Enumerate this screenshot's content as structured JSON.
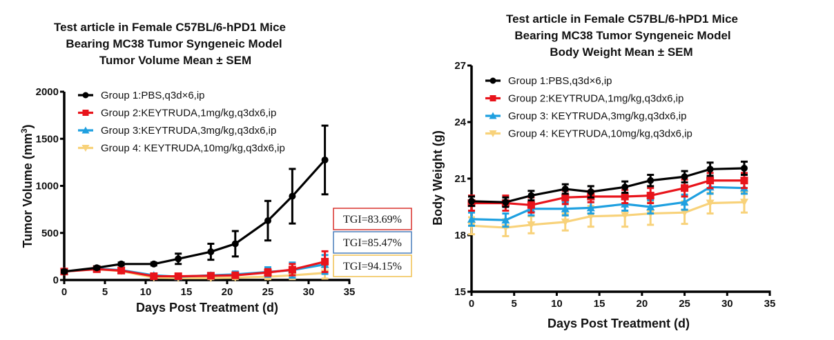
{
  "chart_data": [
    {
      "type": "line",
      "title": [
        "Test article in Female C57BL/6-hPD1 Mice",
        "Bearing MC38 Tumor Syngeneic Model",
        "Tumor Volume Mean ± SEM"
      ],
      "xlabel": "Days Post Treatment (d)",
      "ylabel": "Tumor Volume (mm",
      "ylabel_sup": "3",
      "ylabel_close": ")",
      "xlim": [
        0,
        35
      ],
      "ylim": [
        0,
        2000
      ],
      "xticks": [
        "0",
        "5",
        "10",
        "15",
        "20",
        "25",
        "30",
        "35"
      ],
      "yticks": [
        "0",
        "500",
        "1000",
        "1500",
        "2000"
      ],
      "grid": false,
      "legend_position": "top-left",
      "x": [
        0,
        4,
        7,
        11,
        14,
        18,
        21,
        25,
        28,
        32
      ],
      "series": [
        {
          "name": "Group 1:PBS,q3d×6,ip",
          "color": "#000000",
          "marker": "circle",
          "values": [
            90,
            130,
            170,
            170,
            225,
            300,
            385,
            630,
            890,
            1275
          ],
          "sem": [
            15,
            15,
            15,
            15,
            55,
            85,
            135,
            210,
            290,
            365
          ]
        },
        {
          "name": "Group 2:KEYTRUDA,1mg/kg,q3dx6,ip",
          "color": "#e8141b",
          "marker": "square",
          "values": [
            90,
            115,
            100,
            40,
            40,
            45,
            50,
            80,
            110,
            195
          ],
          "sem": [
            15,
            15,
            15,
            12,
            12,
            15,
            20,
            35,
            60,
            110
          ]
        },
        {
          "name": "Group 3:KEYTRUDA,3mg/kg,q3dx6,ip",
          "color": "#1fa0e0",
          "marker": "triangle-up",
          "values": [
            90,
            120,
            105,
            50,
            35,
            50,
            60,
            85,
            105,
            165
          ],
          "sem": [
            15,
            15,
            15,
            12,
            12,
            25,
            30,
            50,
            80,
            100
          ]
        },
        {
          "name": "Group 4: KEYTRUDA,10mg/kg,q3dx6,ip",
          "color": "#f8d27a",
          "marker": "triangle-down",
          "values": [
            90,
            115,
            95,
            25,
            20,
            20,
            25,
            35,
            50,
            75
          ],
          "sem": [
            15,
            15,
            15,
            10,
            10,
            10,
            15,
            25,
            40,
            60
          ]
        }
      ],
      "annotations": [
        {
          "text": "TGI=83.69%",
          "border_color": "#d9302c"
        },
        {
          "text": "TGI=85.47%",
          "border_color": "#4a7ebb"
        },
        {
          "text": "TGI=94.15%",
          "border_color": "#f0c050"
        }
      ]
    },
    {
      "type": "line",
      "title": [
        "Test article in Female C57BL/6-hPD1 Mice",
        "Bearing MC38 Tumor Syngeneic Model",
        "Body Weight  Mean ± SEM"
      ],
      "xlabel": "Days Post Treatment (d)",
      "ylabel": "Body Weight (g)",
      "xlim": [
        0,
        35
      ],
      "ylim": [
        15,
        27
      ],
      "xticks": [
        "0",
        "5",
        "10",
        "15",
        "20",
        "25",
        "30",
        "35"
      ],
      "yticks": [
        "15",
        "18",
        "21",
        "24",
        "27"
      ],
      "grid": false,
      "legend_position": "top-left",
      "x": [
        0,
        4,
        7,
        11,
        14,
        18,
        21,
        25,
        28,
        32
      ],
      "series": [
        {
          "name": "Group 1:PBS,q3d×6,ip",
          "color": "#000000",
          "marker": "circle",
          "values": [
            19.8,
            19.75,
            20.1,
            20.45,
            20.3,
            20.55,
            20.9,
            21.1,
            21.5,
            21.55
          ],
          "sem": [
            0.25,
            0.25,
            0.25,
            0.25,
            0.3,
            0.3,
            0.3,
            0.3,
            0.35,
            0.35
          ]
        },
        {
          "name": "Group 2:KEYTRUDA,1mg/kg,q3dx6,ip",
          "color": "#e8141b",
          "marker": "square",
          "values": [
            19.7,
            19.7,
            19.6,
            20.0,
            20.05,
            20.05,
            20.1,
            20.5,
            20.9,
            20.9
          ],
          "sem": [
            0.4,
            0.4,
            0.4,
            0.35,
            0.3,
            0.35,
            0.4,
            0.45,
            0.4,
            0.4
          ]
        },
        {
          "name": "Group 3: KEYTRUDA,3mg/kg,q3dx6,ip",
          "color": "#1fa0e0",
          "marker": "triangle-up",
          "values": [
            18.85,
            18.8,
            19.4,
            19.4,
            19.45,
            19.65,
            19.5,
            19.75,
            20.55,
            20.5
          ],
          "sem": [
            0.35,
            0.35,
            0.35,
            0.35,
            0.3,
            0.35,
            0.35,
            0.4,
            0.35,
            0.3
          ]
        },
        {
          "name": "Group 4: KEYTRUDA,10mg/kg,q3dx6,ip",
          "color": "#f8d27a",
          "marker": "triangle-down",
          "values": [
            18.5,
            18.4,
            18.55,
            18.7,
            19.0,
            19.05,
            19.15,
            19.2,
            19.7,
            19.75
          ],
          "sem": [
            0.45,
            0.45,
            0.45,
            0.45,
            0.55,
            0.6,
            0.6,
            0.6,
            0.55,
            0.55
          ]
        }
      ]
    }
  ]
}
